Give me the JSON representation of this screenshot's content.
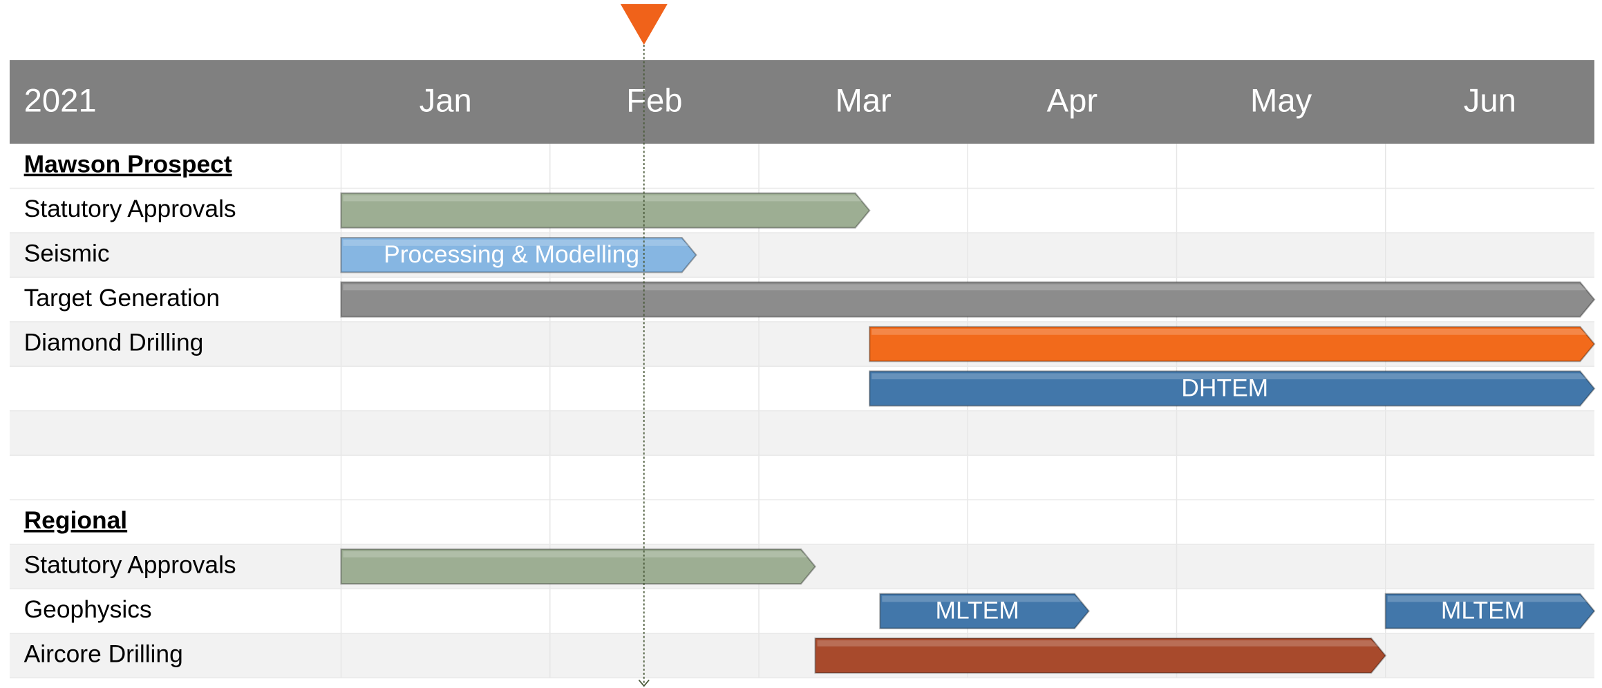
{
  "chart_data": {
    "type": "gantt",
    "year": "2021",
    "categories": [
      "Jan",
      "Feb",
      "Mar",
      "Apr",
      "May",
      "Jun"
    ],
    "xlim": [
      0,
      6
    ],
    "marker": {
      "value": 1.45,
      "color": "#f0621a"
    },
    "header_color": "#808080",
    "shade_color": "#f2f2f2",
    "rows": [
      {
        "label": "Mawson Prospect",
        "heading": true,
        "shaded": false,
        "bars": []
      },
      {
        "label": "Statutory Approvals",
        "shaded": false,
        "bars": [
          {
            "start": 0,
            "end": 2.53,
            "color": "#9dae93"
          }
        ]
      },
      {
        "label": "Seismic",
        "shaded": true,
        "bars": [
          {
            "start": 0,
            "end": 1.7,
            "color": "#86b6e2",
            "label": "Processing & Modelling"
          }
        ]
      },
      {
        "label": "Target Generation",
        "shaded": false,
        "bars": [
          {
            "start": 0,
            "end": 6,
            "color": "#8c8c8c"
          }
        ]
      },
      {
        "label": "Diamond Drilling",
        "shaded": true,
        "bars": [
          {
            "start": 2.53,
            "end": 6,
            "color": "#f26a1b"
          }
        ]
      },
      {
        "label": null,
        "shaded": false,
        "bars": [
          {
            "start": 2.53,
            "end": 6,
            "color": "#4277aa",
            "label": "DHTEM"
          }
        ]
      },
      {
        "label": null,
        "shaded": true,
        "bars": []
      },
      {
        "label": null,
        "shaded": false,
        "bars": []
      },
      {
        "label": "Regional",
        "heading": true,
        "shaded": false,
        "bars": []
      },
      {
        "label": "Statutory Approvals",
        "shaded": true,
        "bars": [
          {
            "start": 0,
            "end": 2.27,
            "color": "#9dae93"
          }
        ]
      },
      {
        "label": "Geophysics",
        "shaded": false,
        "bars": [
          {
            "start": 2.58,
            "end": 3.58,
            "color": "#4277aa",
            "label": "MLTEM"
          },
          {
            "start": 5,
            "end": 6,
            "color": "#4277aa",
            "label": "MLTEM"
          }
        ]
      },
      {
        "label": "Aircore Drilling",
        "shaded": true,
        "bars": [
          {
            "start": 2.27,
            "end": 5,
            "color": "#a84a2c"
          }
        ]
      }
    ]
  }
}
